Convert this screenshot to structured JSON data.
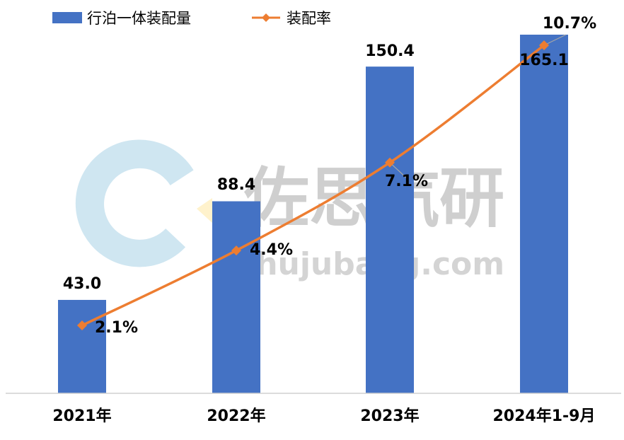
{
  "chart_data": {
    "type": "bar",
    "categories": [
      "2021年",
      "2022年",
      "2023年",
      "2024年1-9月"
    ],
    "series": [
      {
        "name": "行泊一体装配量",
        "type": "bar",
        "values": [
          43.0,
          88.4,
          150.4,
          165.1
        ],
        "labels": [
          "43.0",
          "88.4",
          "150.4",
          "165.1"
        ],
        "color": "#4472C4"
      },
      {
        "name": "装配率",
        "type": "line",
        "values": [
          2.1,
          4.4,
          7.1,
          10.7
        ],
        "labels": [
          "2.1%",
          "4.4%",
          "7.1%",
          "10.7%"
        ],
        "unit": "%",
        "color": "#ED7D31"
      }
    ],
    "legend_position": "top-left",
    "grid": false
  },
  "watermark": {
    "cn": "佐思汽研",
    "en": "shujubang.com",
    "logo_color": "#cfe6f1",
    "logo_accent": "#fff2cc"
  },
  "colors": {
    "bar": "#4472C4",
    "line": "#ED7D31",
    "axis": "#d0d0d0",
    "leader": "#a6a6a6"
  }
}
